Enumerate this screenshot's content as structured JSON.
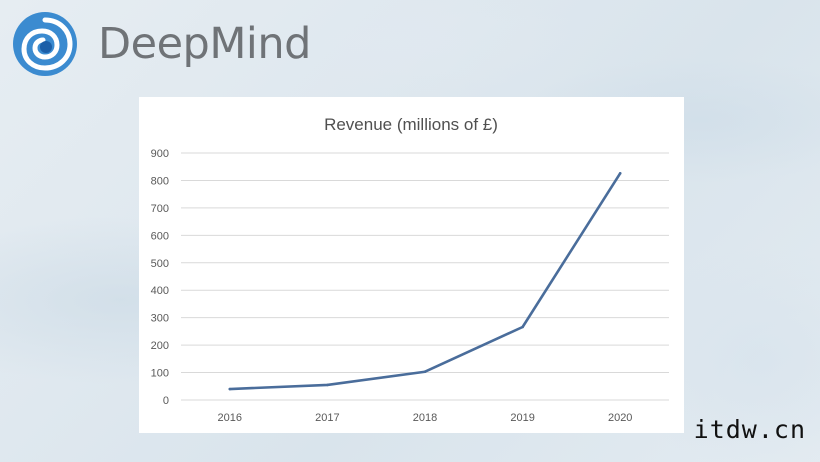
{
  "logo": {
    "wordmark": "DeepMind",
    "icon": "deepmind-swirl-icon",
    "colors": {
      "outer": "#3b8bd0",
      "inner": "#1c5fa8",
      "text": "#6f7377"
    }
  },
  "watermark": "itdw.cn",
  "chart_data": {
    "type": "line",
    "title": "Revenue (millions of £)",
    "xlabel": "",
    "ylabel": "",
    "categories": [
      "2016",
      "2017",
      "2018",
      "2019",
      "2020"
    ],
    "series": [
      {
        "values": [
          40,
          55,
          103,
          266,
          826
        ],
        "color": "#4a6d9b"
      }
    ],
    "yticks": [
      0,
      100,
      200,
      300,
      400,
      500,
      600,
      700,
      800,
      900
    ],
    "ylim": [
      0,
      900
    ],
    "grid": true,
    "legend": "none"
  }
}
